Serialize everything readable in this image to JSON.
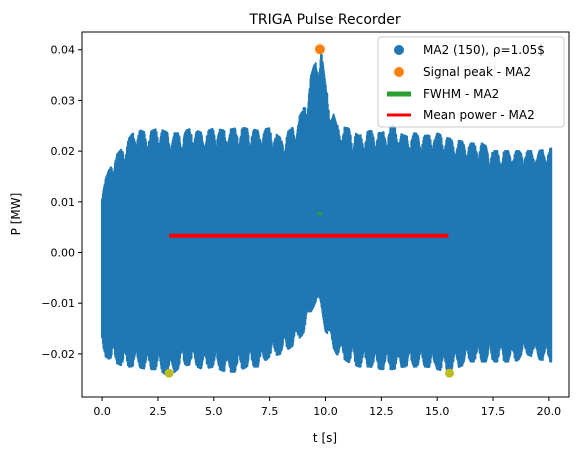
{
  "chart_data": {
    "type": "scatter",
    "title": "TRIGA Pulse Recorder",
    "xlabel": "t [s]",
    "ylabel": "P [MW]",
    "xlim": [
      -0.9,
      20.9
    ],
    "ylim": [
      -0.0285,
      0.0435
    ],
    "xticks": [
      0.0,
      2.5,
      5.0,
      7.5,
      10.0,
      12.5,
      15.0,
      17.5,
      20.0
    ],
    "xtick_labels": [
      "0.0",
      "2.5",
      "5.0",
      "7.5",
      "10.0",
      "12.5",
      "15.0",
      "17.5",
      "20.0"
    ],
    "yticks": [
      -0.02,
      -0.01,
      0.0,
      0.01,
      0.02,
      0.03,
      0.04
    ],
    "ytick_labels": [
      "−0.02",
      "−0.01",
      "0.00",
      "0.01",
      "0.02",
      "0.03",
      "0.04"
    ],
    "legend_position": "top-right",
    "grid": false,
    "signal": {
      "name": "MA2 (150), ρ=1.05$",
      "color": "#1f77b4",
      "t_range": [
        0.0,
        20.1
      ],
      "baseline": 0.0,
      "envelope_points": [
        [
          0.0,
          0.0125,
          -0.02
        ],
        [
          0.5,
          0.0185,
          -0.0215
        ],
        [
          1.0,
          0.021,
          -0.0225
        ],
        [
          1.5,
          0.0245,
          -0.0225
        ],
        [
          2.0,
          0.0235,
          -0.023
        ],
        [
          2.5,
          0.0245,
          -0.023
        ],
        [
          3.0,
          0.0235,
          -0.0245
        ],
        [
          3.5,
          0.0235,
          -0.0225
        ],
        [
          4.0,
          0.0245,
          -0.022
        ],
        [
          4.5,
          0.0235,
          -0.023
        ],
        [
          5.0,
          0.0245,
          -0.0225
        ],
        [
          5.5,
          0.024,
          -0.0235
        ],
        [
          6.0,
          0.0245,
          -0.0235
        ],
        [
          6.5,
          0.0245,
          -0.0225
        ],
        [
          7.0,
          0.024,
          -0.0225
        ],
        [
          7.5,
          0.0245,
          -0.0205
        ],
        [
          8.0,
          0.0225,
          -0.02
        ],
        [
          8.5,
          0.0245,
          -0.0185
        ],
        [
          9.0,
          0.028,
          -0.016
        ],
        [
          9.3,
          0.034,
          -0.012
        ],
        [
          9.6,
          0.0385,
          -0.0095
        ],
        [
          9.8,
          0.04,
          -0.01
        ],
        [
          10.0,
          0.033,
          -0.0155
        ],
        [
          10.5,
          0.025,
          -0.02
        ],
        [
          11.0,
          0.0245,
          -0.0215
        ],
        [
          11.5,
          0.023,
          -0.0225
        ],
        [
          12.0,
          0.024,
          -0.0225
        ],
        [
          12.5,
          0.0235,
          -0.023
        ],
        [
          13.0,
          0.025,
          -0.023
        ],
        [
          13.5,
          0.023,
          -0.0225
        ],
        [
          14.0,
          0.0235,
          -0.0225
        ],
        [
          14.5,
          0.023,
          -0.0225
        ],
        [
          15.0,
          0.0235,
          -0.023
        ],
        [
          15.5,
          0.0225,
          -0.0235
        ],
        [
          16.0,
          0.022,
          -0.0225
        ],
        [
          16.5,
          0.0215,
          -0.0215
        ],
        [
          17.0,
          0.0215,
          -0.0215
        ],
        [
          17.5,
          0.02,
          -0.0215
        ],
        [
          18.0,
          0.02,
          -0.0215
        ],
        [
          18.5,
          0.02,
          -0.0215
        ],
        [
          19.0,
          0.02,
          -0.02
        ],
        [
          19.5,
          0.02,
          -0.021
        ],
        [
          20.1,
          0.0205,
          -0.0215
        ]
      ]
    },
    "peak": {
      "name": "Signal peak - MA2",
      "color": "#ff7f0e",
      "x": 9.75,
      "y": 0.0401
    },
    "fwhm": {
      "name": "FWHM - MA2",
      "color": "#2ca02c",
      "x": [
        9.65,
        9.85
      ],
      "y": 0.0077
    },
    "mean_power": {
      "name": "Mean power - MA2",
      "color": "#ff0000",
      "x": [
        3.0,
        15.5
      ],
      "y": 0.0033
    },
    "minima": {
      "color": "#bcbd22",
      "points": [
        [
          3.0,
          -0.0238
        ],
        [
          15.55,
          -0.0238
        ]
      ]
    }
  }
}
